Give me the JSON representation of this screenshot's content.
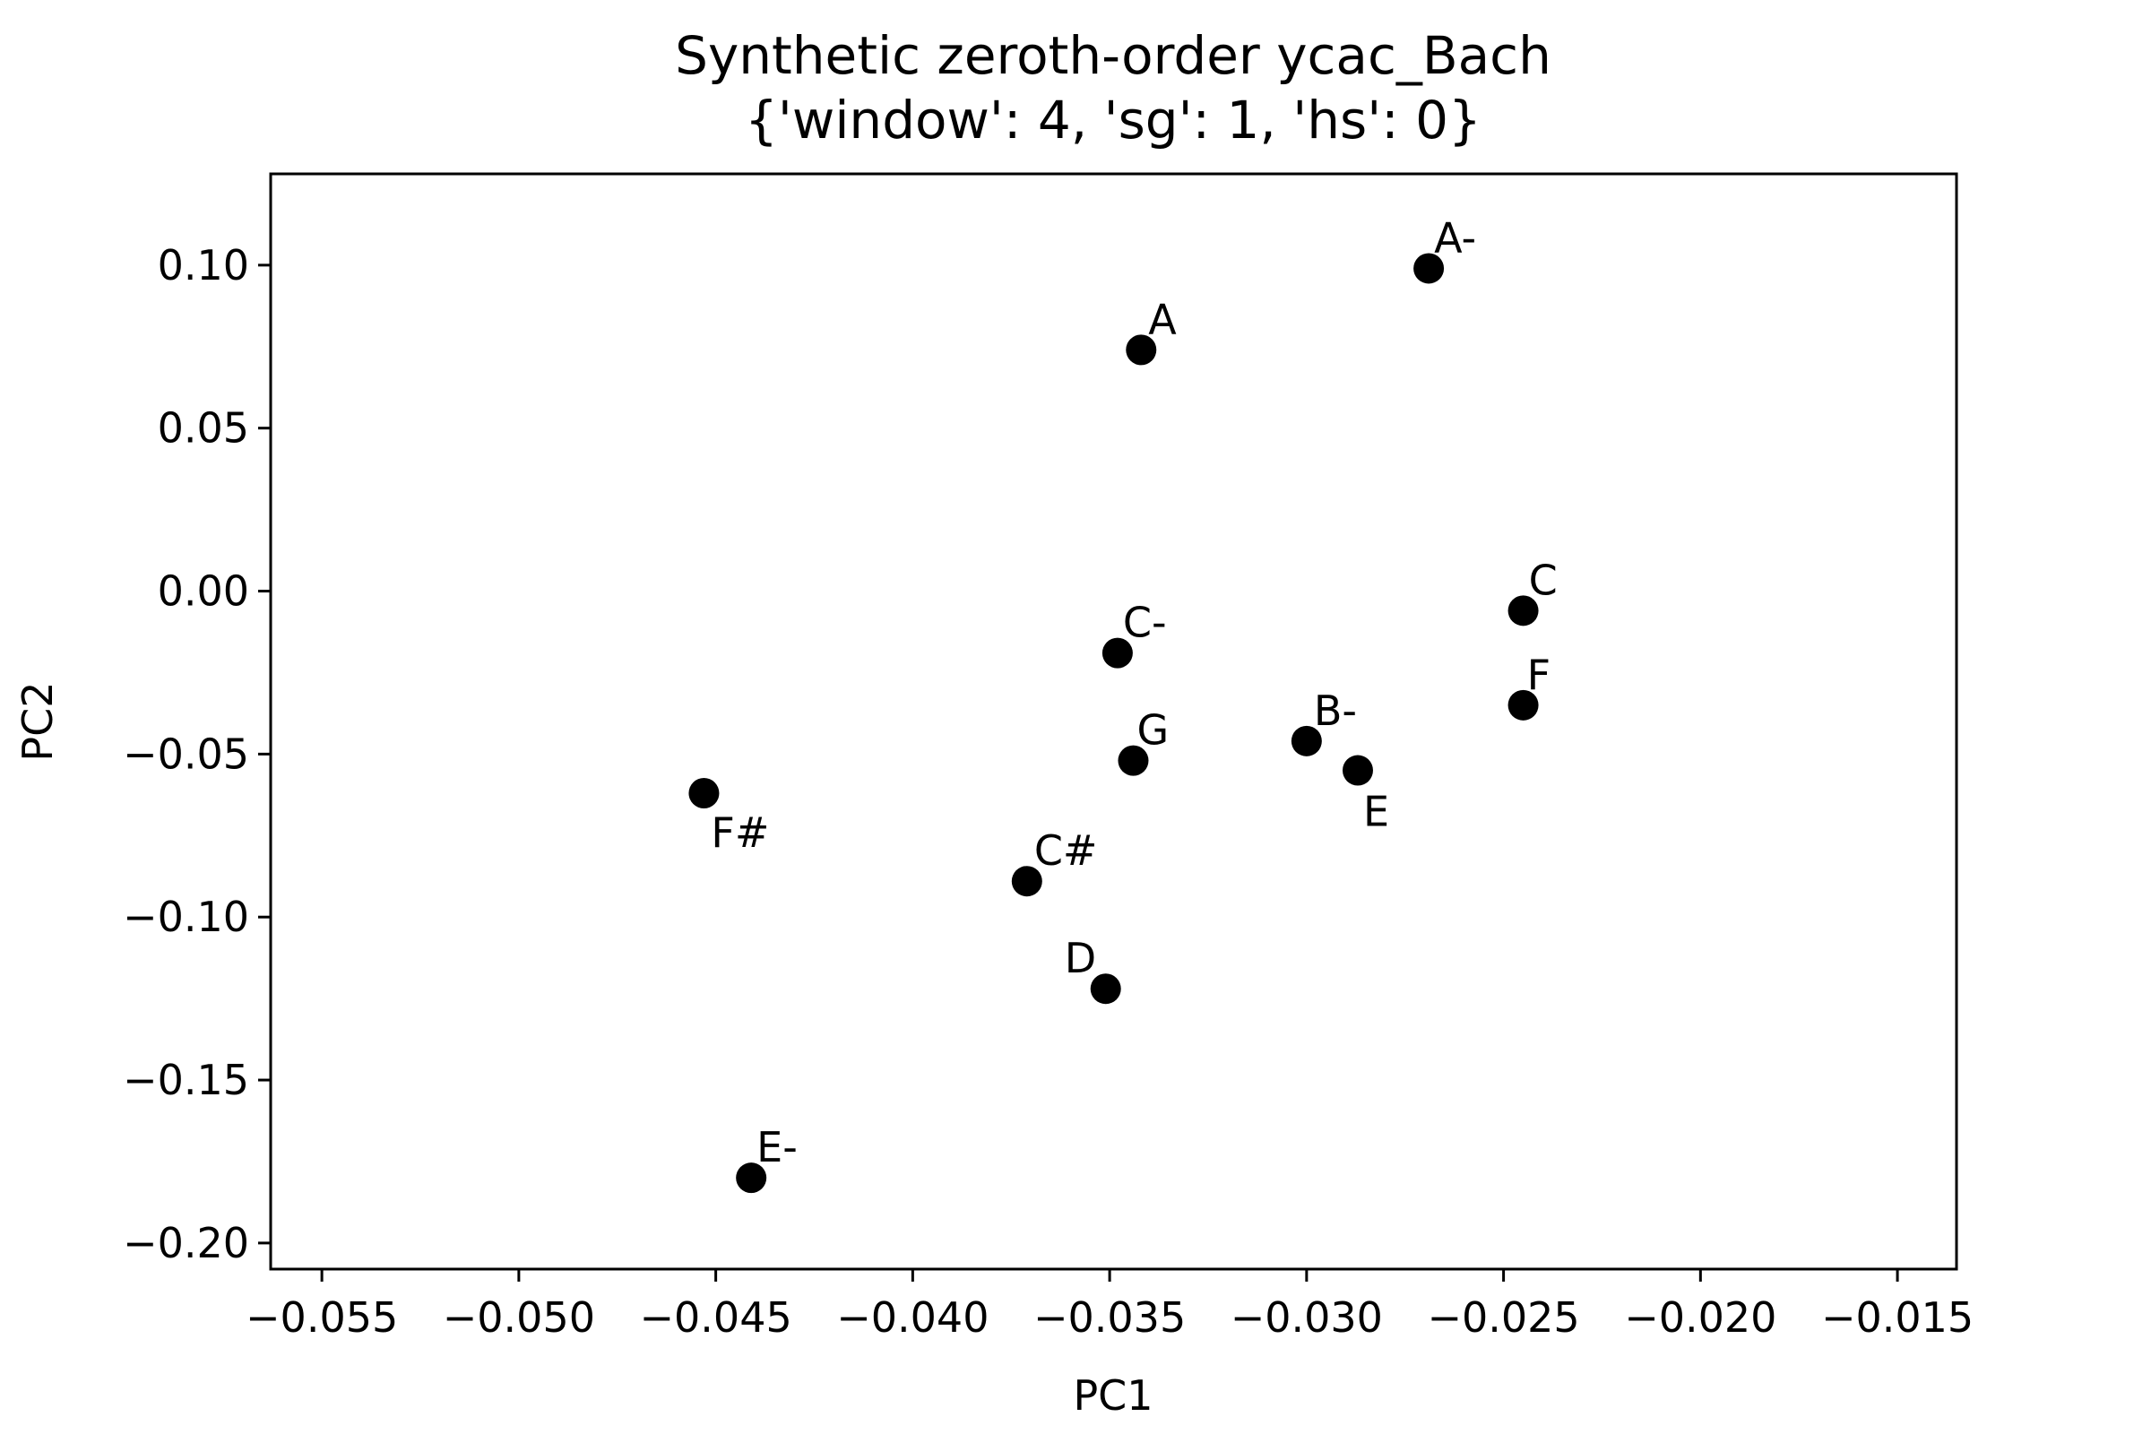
{
  "chart_data": {
    "type": "scatter",
    "title": "Synthetic zeroth-order ycac_Bach",
    "subtitle": "{'window': 4, 'sg': 1, 'hs': 0}",
    "xlabel": "PC1",
    "ylabel": "PC2",
    "xlim": [
      -0.0563,
      -0.0135
    ],
    "ylim": [
      -0.208,
      0.128
    ],
    "xticks": [
      -0.055,
      -0.05,
      -0.045,
      -0.04,
      -0.035,
      -0.03,
      -0.025,
      -0.02,
      -0.015
    ],
    "xtick_labels": [
      "−0.055",
      "−0.050",
      "−0.045",
      "−0.040",
      "−0.035",
      "−0.030",
      "−0.025",
      "−0.020",
      "−0.015"
    ],
    "yticks": [
      0.1,
      0.05,
      0.0,
      -0.05,
      -0.1,
      -0.15,
      -0.2
    ],
    "ytick_labels": [
      "0.10",
      "0.05",
      "0.00",
      "−0.05",
      "−0.10",
      "−0.15",
      "−0.20"
    ],
    "grid": false,
    "marker_color": "#000000",
    "points": [
      {
        "label": "A-",
        "x": -0.0269,
        "y": 0.099
      },
      {
        "label": "A",
        "x": -0.0342,
        "y": 0.074
      },
      {
        "label": "C",
        "x": -0.0245,
        "y": -0.006
      },
      {
        "label": "C-",
        "x": -0.0348,
        "y": -0.019
      },
      {
        "label": "F",
        "x": -0.0245,
        "y": -0.035
      },
      {
        "label": "G",
        "x": -0.0344,
        "y": -0.052
      },
      {
        "label": "B-",
        "x": -0.03,
        "y": -0.046
      },
      {
        "label": "E",
        "x": -0.0287,
        "y": -0.055
      },
      {
        "label": "F#",
        "x": -0.0453,
        "y": -0.062
      },
      {
        "label": "C#",
        "x": -0.0371,
        "y": -0.089
      },
      {
        "label": "D",
        "x": -0.0351,
        "y": -0.122
      },
      {
        "label": "E-",
        "x": -0.0441,
        "y": -0.18
      }
    ]
  }
}
